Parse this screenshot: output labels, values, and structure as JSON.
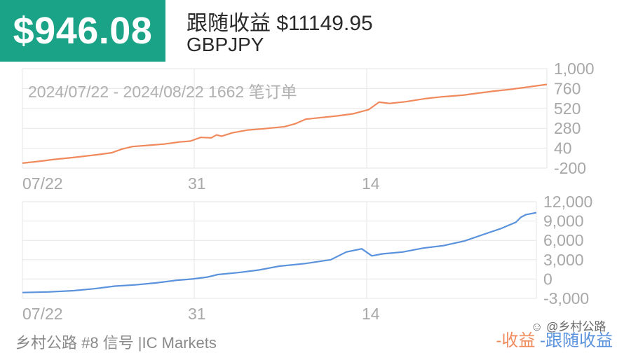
{
  "header": {
    "profit": "$946.08",
    "title": "跟随收益 $11149.95",
    "symbol": "GBPJPY"
  },
  "footer": {
    "signal": "乡村公路 #8 信号 |IC Markets",
    "legend_profit": "-收益",
    "legend_follow": "-跟随收益"
  },
  "watermark": "乡村公路",
  "colors": {
    "badge": "#1aa386",
    "profit": "#f08a5d",
    "follow": "#5a92dc",
    "grid": "#e6e6e6",
    "axis_text": "#a8a8a8"
  },
  "chart_data": [
    {
      "type": "line",
      "annotation": "2024/07/22 - 2024/08/22 1662 笔订单",
      "x_tick_labels": [
        "07/22",
        "31",
        "14"
      ],
      "y_tick_labels": [
        "1,000",
        "760",
        "520",
        "280",
        "40",
        "-200"
      ],
      "ylim": [
        -200,
        1000
      ],
      "grid": true,
      "series": [
        {
          "name": "收益",
          "color": "#f08a5d",
          "x": [
            0,
            0.03,
            0.06,
            0.1,
            0.14,
            0.17,
            0.19,
            0.21,
            0.24,
            0.27,
            0.3,
            0.32,
            0.34,
            0.36,
            0.37,
            0.38,
            0.4,
            0.43,
            0.46,
            0.5,
            0.52,
            0.54,
            0.57,
            0.6,
            0.63,
            0.66,
            0.68,
            0.7,
            0.73,
            0.77,
            0.8,
            0.84,
            0.87,
            0.9,
            0.93,
            0.96,
            1.0
          ],
          "y": [
            -140,
            -120,
            -95,
            -70,
            -40,
            -15,
            30,
            60,
            75,
            90,
            115,
            125,
            170,
            165,
            200,
            185,
            225,
            260,
            275,
            300,
            335,
            390,
            410,
            430,
            455,
            505,
            595,
            580,
            600,
            640,
            660,
            680,
            705,
            730,
            750,
            775,
            810
          ]
        }
      ]
    },
    {
      "type": "line",
      "x_tick_labels": [
        "07/22",
        "31",
        "14"
      ],
      "y_tick_labels": [
        "12,000",
        "9,000",
        "6,000",
        "3,000",
        "0",
        "-3,000"
      ],
      "ylim": [
        -3000,
        12000
      ],
      "grid": true,
      "series": [
        {
          "name": "跟随收益",
          "color": "#5a92dc",
          "x": [
            0,
            0.05,
            0.1,
            0.14,
            0.18,
            0.22,
            0.26,
            0.3,
            0.33,
            0.36,
            0.37,
            0.38,
            0.42,
            0.46,
            0.5,
            0.55,
            0.6,
            0.63,
            0.66,
            0.68,
            0.7,
            0.74,
            0.78,
            0.82,
            0.86,
            0.9,
            0.93,
            0.96,
            0.97,
            0.98,
            1.0
          ],
          "y": [
            -2100,
            -2000,
            -1800,
            -1500,
            -1100,
            -900,
            -600,
            -200,
            0,
            300,
            500,
            700,
            1000,
            1400,
            2000,
            2400,
            3000,
            4200,
            4700,
            3600,
            3900,
            4200,
            4800,
            5200,
            5900,
            7000,
            7800,
            8800,
            9600,
            10000,
            10300
          ]
        }
      ]
    }
  ]
}
